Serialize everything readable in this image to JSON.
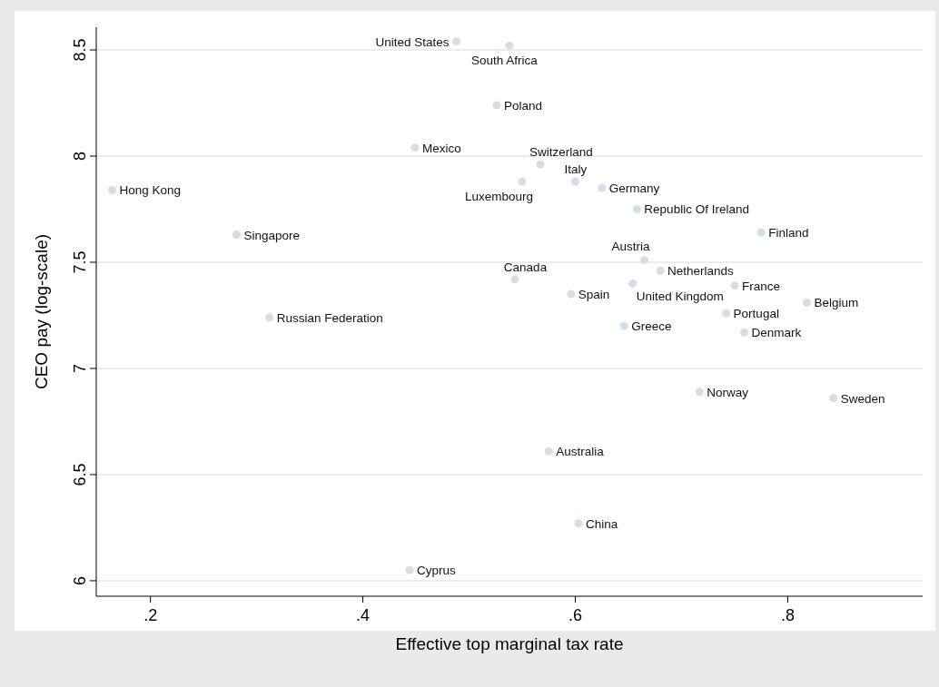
{
  "chart_data": {
    "type": "scatter",
    "xlabel": "Effective top marginal tax rate",
    "ylabel": "CEO pay (log-scale)",
    "xlim": [
      0.149,
      0.927
    ],
    "ylim": [
      5.927,
      8.607
    ],
    "xticks": [
      {
        "value": 0.2,
        "label": ".2"
      },
      {
        "value": 0.4,
        "label": ".4"
      },
      {
        "value": 0.6,
        "label": ".6"
      },
      {
        "value": 0.8,
        "label": ".8"
      }
    ],
    "yticks": [
      6,
      6.5,
      7,
      7.5,
      8,
      8.5
    ],
    "grid": "y",
    "marker": "circle",
    "series": [
      {
        "color": "#d3dfe6",
        "x": [
          0.488,
          0.538,
          0.526,
          0.449,
          0.567,
          0.6,
          0.55,
          0.625,
          0.658,
          0.775,
          0.164,
          0.281,
          0.665,
          0.68,
          0.543,
          0.75,
          0.654,
          0.596,
          0.818,
          0.312,
          0.742,
          0.646,
          0.759,
          0.717,
          0.843,
          0.575,
          0.603,
          0.444
        ],
        "values": [
          8.54,
          8.52,
          8.24,
          8.04,
          7.96,
          7.88,
          7.88,
          7.85,
          7.75,
          7.64,
          7.84,
          7.63,
          7.51,
          7.46,
          7.42,
          7.39,
          7.4,
          7.35,
          7.31,
          7.24,
          7.26,
          7.2,
          7.17,
          6.89,
          6.86,
          6.61,
          6.27,
          6.05
        ]
      }
    ],
    "annotations": [
      {
        "text": "United States",
        "x": 0.488,
        "y": 8.54
      },
      {
        "text": "South Africa",
        "x": 0.538,
        "y": 8.52
      },
      {
        "text": "Poland",
        "x": 0.526,
        "y": 8.24
      },
      {
        "text": "Mexico",
        "x": 0.449,
        "y": 8.04
      },
      {
        "text": "Switzerland",
        "x": 0.567,
        "y": 7.96
      },
      {
        "text": "Italy",
        "x": 0.6,
        "y": 7.88
      },
      {
        "text": "Luxembourg",
        "x": 0.55,
        "y": 7.88
      },
      {
        "text": "Germany",
        "x": 0.625,
        "y": 7.85
      },
      {
        "text": "Republic Of Ireland",
        "x": 0.658,
        "y": 7.75
      },
      {
        "text": "Finland",
        "x": 0.775,
        "y": 7.64
      },
      {
        "text": "Hong Kong",
        "x": 0.164,
        "y": 7.84
      },
      {
        "text": "Singapore",
        "x": 0.281,
        "y": 7.63
      },
      {
        "text": "Austria",
        "x": 0.665,
        "y": 7.51
      },
      {
        "text": "Netherlands",
        "x": 0.68,
        "y": 7.46
      },
      {
        "text": "Canada",
        "x": 0.543,
        "y": 7.42
      },
      {
        "text": "France",
        "x": 0.75,
        "y": 7.39
      },
      {
        "text": "United Kingdom",
        "x": 0.654,
        "y": 7.4
      },
      {
        "text": "Spain",
        "x": 0.596,
        "y": 7.35
      },
      {
        "text": "Belgium",
        "x": 0.818,
        "y": 7.31
      },
      {
        "text": "Russian Federation",
        "x": 0.312,
        "y": 7.24
      },
      {
        "text": "Portugal",
        "x": 0.742,
        "y": 7.26
      },
      {
        "text": "Greece",
        "x": 0.646,
        "y": 7.2
      },
      {
        "text": "Denmark",
        "x": 0.759,
        "y": 7.17
      },
      {
        "text": "Norway",
        "x": 0.717,
        "y": 6.89
      },
      {
        "text": "Sweden",
        "x": 0.843,
        "y": 6.86
      },
      {
        "text": "Australia",
        "x": 0.575,
        "y": 6.61
      },
      {
        "text": "China",
        "x": 0.603,
        "y": 6.27
      },
      {
        "text": "Cyprus",
        "x": 0.444,
        "y": 6.05
      }
    ]
  }
}
